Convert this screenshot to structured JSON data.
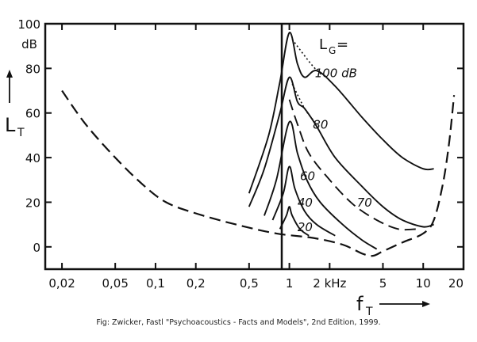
{
  "chart_data": {
    "type": "line",
    "xscale": "log",
    "xlim": [
      0.015,
      20
    ],
    "ylim": [
      -10,
      100
    ],
    "grid": false,
    "xlabel_main": "f",
    "xlabel_sub": "T",
    "ylabel_main": "L",
    "ylabel_sub": "T",
    "y_unit": "dB",
    "y_ticks": [
      {
        "value": 100,
        "label": "100"
      },
      {
        "value": 80,
        "label": "80"
      },
      {
        "value": 60,
        "label": "60"
      },
      {
        "value": 40,
        "label": "40"
      },
      {
        "value": 20,
        "label": "20"
      },
      {
        "value": 0,
        "label": "0"
      }
    ],
    "x_ticks": [
      {
        "value": 0.02,
        "label": "0,02"
      },
      {
        "value": 0.05,
        "label": "0,05"
      },
      {
        "value": 0.1,
        "label": "0,1"
      },
      {
        "value": 0.2,
        "label": "0,2"
      },
      {
        "value": 0.5,
        "label": "0,5"
      },
      {
        "value": 1,
        "label": "1"
      },
      {
        "value": 2,
        "label": "2 kHz"
      },
      {
        "value": 5,
        "label": "5"
      },
      {
        "value": 10,
        "label": "10"
      },
      {
        "value": 20,
        "label": "20"
      }
    ],
    "legend_title_main": "L",
    "legend_title_sub": "G",
    "legend_title_suffix": " =",
    "threshold_in_quiet": [
      [
        0.02,
        70
      ],
      [
        0.03,
        55
      ],
      [
        0.05,
        40
      ],
      [
        0.08,
        28
      ],
      [
        0.12,
        20
      ],
      [
        0.2,
        15
      ],
      [
        0.4,
        10
      ],
      [
        0.8,
        6
      ],
      [
        1.5,
        4
      ],
      [
        2.5,
        1
      ],
      [
        3.5,
        -3
      ],
      [
        4.2,
        -4
      ],
      [
        5,
        -2
      ],
      [
        7,
        2
      ],
      [
        10,
        6
      ],
      [
        12,
        12
      ],
      [
        14,
        28
      ],
      [
        15.5,
        45
      ],
      [
        16.5,
        60
      ],
      [
        17,
        68
      ]
    ],
    "series": [
      {
        "name": "100 dB",
        "label_at": [
          1.55,
          76
        ],
        "points": [
          [
            0.5,
            24
          ],
          [
            0.7,
            50
          ],
          [
            0.85,
            74
          ],
          [
            1,
            96
          ],
          [
            1.15,
            82
          ],
          [
            1.3,
            76
          ],
          [
            1.6,
            79
          ],
          [
            2.2,
            72
          ],
          [
            3.5,
            58
          ],
          [
            5,
            48
          ],
          [
            7,
            40
          ],
          [
            10,
            35
          ],
          [
            12,
            35
          ]
        ]
      },
      {
        "name": "80",
        "label_at": [
          1.5,
          53
        ],
        "points": [
          [
            0.5,
            18
          ],
          [
            0.65,
            35
          ],
          [
            0.85,
            60
          ],
          [
            1,
            76
          ],
          [
            1.15,
            65
          ],
          [
            1.3,
            62
          ],
          [
            1.6,
            54
          ],
          [
            2.2,
            40
          ],
          [
            3.5,
            27
          ],
          [
            5,
            18
          ],
          [
            7,
            12
          ],
          [
            10,
            9
          ],
          [
            12,
            10
          ]
        ]
      },
      {
        "name": "70",
        "label_at": [
          3.2,
          18
        ],
        "dashed": true,
        "points": [
          [
            1,
            66
          ],
          [
            1.15,
            55
          ],
          [
            1.4,
            42
          ],
          [
            2,
            30
          ],
          [
            3,
            19
          ],
          [
            4.5,
            12
          ],
          [
            6.5,
            8
          ],
          [
            9,
            8
          ]
        ]
      },
      {
        "name": "60",
        "label_at": [
          1.2,
          30
        ],
        "points": [
          [
            0.65,
            14
          ],
          [
            0.8,
            30
          ],
          [
            1,
            56
          ],
          [
            1.15,
            42
          ],
          [
            1.35,
            30
          ],
          [
            1.7,
            20
          ],
          [
            2.5,
            10
          ],
          [
            3.5,
            3
          ],
          [
            4.5,
            -1
          ]
        ]
      },
      {
        "name": "40",
        "label_at": [
          1.15,
          18
        ],
        "points": [
          [
            0.75,
            12
          ],
          [
            0.9,
            24
          ],
          [
            1,
            36
          ],
          [
            1.1,
            26
          ],
          [
            1.3,
            16
          ],
          [
            1.6,
            10
          ],
          [
            2.2,
            5
          ]
        ]
      },
      {
        "name": "20",
        "label_at": [
          1.15,
          7
        ],
        "points": [
          [
            0.85,
            8
          ],
          [
            0.95,
            14
          ],
          [
            1,
            18
          ],
          [
            1.05,
            14
          ],
          [
            1.2,
            8
          ],
          [
            1.4,
            5
          ]
        ]
      }
    ]
  },
  "caption": "Fig: Zwicker, Fastl \"Psychoacoustics - Facts and Models\", 2nd Edition, 1999."
}
